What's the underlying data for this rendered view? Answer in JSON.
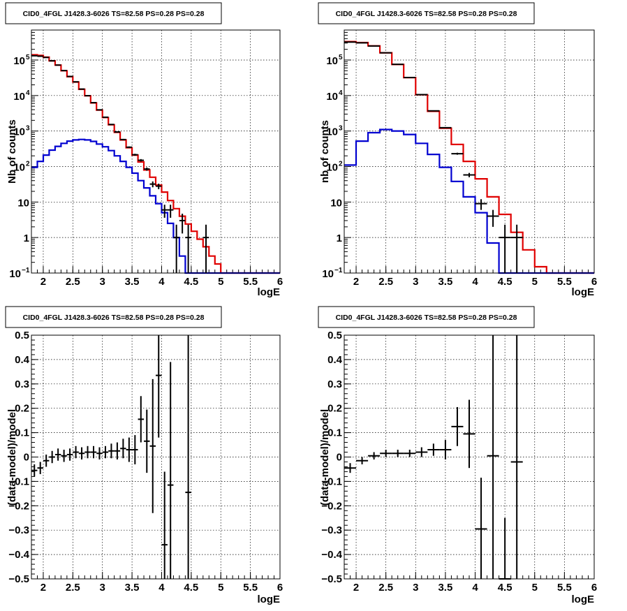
{
  "chart_data": [
    {
      "id": "top-left",
      "type": "step-histogram",
      "title": "CID0_4FGL J1428.3-6026 TS=82.58 PS=0.28 PS=0.28",
      "xlabel": "logE",
      "ylabel": "Nb of counts",
      "log_y": true,
      "xlim": [
        1.8,
        6.0
      ],
      "ylim": [
        0.1,
        700000
      ],
      "x_ticks": [
        2,
        2.5,
        3,
        3.5,
        4,
        4.5,
        5,
        5.5,
        6
      ],
      "x_tick_labels": [
        "2",
        "2.5",
        "3",
        "3.5",
        "4",
        "4.5",
        "5",
        "5.5",
        "6"
      ],
      "y_ticks": [
        0.1,
        1,
        10,
        100,
        1000,
        10000,
        100000
      ],
      "y_tick_labels": [
        {
          "base": "10",
          "exp": "−1"
        },
        {
          "base": "1",
          "exp": ""
        },
        {
          "base": "10",
          "exp": ""
        },
        {
          "base": "10",
          "exp": "2"
        },
        {
          "base": "10",
          "exp": "3"
        },
        {
          "base": "10",
          "exp": "4"
        },
        {
          "base": "10",
          "exp": "5"
        }
      ],
      "grid": true,
      "bin_edges": [
        1.8,
        1.9,
        2.0,
        2.1,
        2.2,
        2.3,
        2.4,
        2.5,
        2.6,
        2.7,
        2.8,
        2.9,
        3.0,
        3.1,
        3.2,
        3.3,
        3.4,
        3.5,
        3.6,
        3.7,
        3.8,
        3.9,
        4.0,
        4.1,
        4.2,
        4.3,
        4.4,
        4.5,
        4.6,
        4.7,
        4.8,
        4.9,
        5.0,
        5.1,
        5.2,
        5.3,
        5.4,
        5.5,
        5.6,
        5.7,
        5.8,
        5.9,
        6.0
      ],
      "series": [
        {
          "color": "#e00000",
          "values": [
            140000,
            135000,
            120000,
            95000,
            72000,
            50000,
            34000,
            24000,
            15000,
            9800,
            6200,
            3900,
            2400,
            1500,
            920,
            560,
            340,
            210,
            135,
            80,
            50,
            30,
            19,
            11,
            6.5,
            4.0,
            2.4,
            1.5,
            0.9,
            0.55,
            0.3,
            0.18,
            0.1,
            0.1,
            0.1,
            0.1,
            0.1,
            0.1,
            0.1,
            0.1,
            0.1,
            0.1
          ]
        },
        {
          "color": "#0000d0",
          "values": [
            95,
            140,
            210,
            290,
            370,
            450,
            520,
            560,
            580,
            560,
            510,
            430,
            360,
            280,
            200,
            140,
            95,
            65,
            40,
            25,
            15,
            9.0,
            5.0,
            2.5,
            1.0,
            0.3,
            0.08,
            0.05,
            0.05,
            0.05,
            0.05,
            0.05,
            0.05,
            0.05,
            0.05,
            0.05,
            0.05,
            0.05,
            0.05,
            0.05,
            0.05,
            0.05
          ]
        }
      ],
      "data_points": [
        {
          "x": 1.85,
          "y": 132000,
          "ylo": 131000,
          "yhi": 133000
        },
        {
          "x": 1.95,
          "y": 128000,
          "ylo": 127000,
          "yhi": 129000
        },
        {
          "x": 2.05,
          "y": 118000,
          "ylo": 117000,
          "yhi": 119000
        },
        {
          "x": 2.15,
          "y": 95000,
          "ylo": 94000,
          "yhi": 96000
        },
        {
          "x": 2.25,
          "y": 72000,
          "ylo": 71000,
          "yhi": 73000
        },
        {
          "x": 2.35,
          "y": 50500,
          "ylo": 50000,
          "yhi": 51000
        },
        {
          "x": 2.45,
          "y": 34500,
          "ylo": 34000,
          "yhi": 35000
        },
        {
          "x": 2.55,
          "y": 24300,
          "ylo": 24000,
          "yhi": 24600
        },
        {
          "x": 2.65,
          "y": 15200,
          "ylo": 15000,
          "yhi": 15400
        },
        {
          "x": 2.75,
          "y": 9900,
          "ylo": 9800,
          "yhi": 10000
        },
        {
          "x": 2.85,
          "y": 6300,
          "ylo": 6200,
          "yhi": 6400
        },
        {
          "x": 2.95,
          "y": 3950,
          "ylo": 3880,
          "yhi": 4020
        },
        {
          "x": 3.05,
          "y": 2450,
          "ylo": 2400,
          "yhi": 2500
        },
        {
          "x": 3.15,
          "y": 1530,
          "ylo": 1490,
          "yhi": 1570
        },
        {
          "x": 3.25,
          "y": 940,
          "ylo": 910,
          "yhi": 970
        },
        {
          "x": 3.35,
          "y": 575,
          "ylo": 550,
          "yhi": 600
        },
        {
          "x": 3.45,
          "y": 350,
          "ylo": 332,
          "yhi": 368
        },
        {
          "x": 3.55,
          "y": 215,
          "ylo": 201,
          "yhi": 229
        },
        {
          "x": 3.65,
          "y": 150,
          "ylo": 138,
          "yhi": 162
        },
        {
          "x": 3.75,
          "y": 85,
          "ylo": 76,
          "yhi": 94
        },
        {
          "x": 3.85,
          "y": 32,
          "ylo": 26,
          "yhi": 38
        },
        {
          "x": 3.95,
          "y": 28,
          "ylo": 23,
          "yhi": 33
        },
        {
          "x": 4.05,
          "y": 6,
          "ylo": 3.6,
          "yhi": 8.4
        },
        {
          "x": 4.15,
          "y": 6,
          "ylo": 3.6,
          "yhi": 8.4
        },
        {
          "x": 4.25,
          "y": 1,
          "ylo": 0.1,
          "yhi": 2.3
        },
        {
          "x": 4.35,
          "y": 3,
          "ylo": 1.3,
          "yhi": 4.7
        },
        {
          "x": 4.45,
          "y": 1,
          "ylo": 0.1,
          "yhi": 2.3
        },
        {
          "x": 4.75,
          "y": 1,
          "ylo": 0.1,
          "yhi": 2.3
        }
      ]
    },
    {
      "id": "top-right",
      "type": "step-histogram",
      "title": "CID0_4FGL J1428.3-6026 TS=82.58 PS=0.28 PS=0.28",
      "xlabel": "logE",
      "ylabel": "nb of counts",
      "log_y": true,
      "xlim": [
        1.8,
        6.0
      ],
      "ylim": [
        0.1,
        700000
      ],
      "x_ticks": [
        2,
        2.5,
        3,
        3.5,
        4,
        4.5,
        5,
        5.5,
        6
      ],
      "x_tick_labels": [
        "2",
        "2.5",
        "3",
        "3.5",
        "4",
        "4.5",
        "5",
        "5.5",
        "6"
      ],
      "y_ticks": [
        0.1,
        1,
        10,
        100,
        1000,
        10000,
        100000
      ],
      "y_tick_labels": [
        {
          "base": "10",
          "exp": "−1"
        },
        {
          "base": "1",
          "exp": ""
        },
        {
          "base": "10",
          "exp": ""
        },
        {
          "base": "10",
          "exp": "2"
        },
        {
          "base": "10",
          "exp": "3"
        },
        {
          "base": "10",
          "exp": "4"
        },
        {
          "base": "10",
          "exp": "5"
        }
      ],
      "grid": true,
      "bin_edges": [
        1.8,
        2.0,
        2.2,
        2.4,
        2.6,
        2.8,
        3.0,
        3.2,
        3.4,
        3.6,
        3.8,
        4.0,
        4.2,
        4.4,
        4.6,
        4.8,
        5.0,
        5.2,
        5.4,
        5.6,
        5.8,
        6.0
      ],
      "series": [
        {
          "color": "#e00000",
          "values": [
            330000,
            310000,
            250000,
            160000,
            75000,
            32000,
            10500,
            3600,
            1200,
            420,
            140,
            45,
            14,
            4.5,
            1.4,
            0.45,
            0.15,
            0.05,
            0.05,
            0.05,
            0.05
          ]
        },
        {
          "color": "#0000d0",
          "values": [
            110,
            520,
            900,
            1100,
            1000,
            800,
            450,
            220,
            95,
            38,
            14,
            5,
            0.7,
            0.08,
            0.08,
            0.08,
            0.08,
            0.08,
            0.08,
            0.08,
            0.08
          ]
        }
      ],
      "data_points": [
        {
          "x": 1.9,
          "y": 320000,
          "ylo": 319000,
          "yhi": 321000
        },
        {
          "x": 2.1,
          "y": 305000,
          "ylo": 304000,
          "yhi": 306000
        },
        {
          "x": 2.3,
          "y": 248000,
          "ylo": 247000,
          "yhi": 249000
        },
        {
          "x": 2.5,
          "y": 160000,
          "ylo": 159000,
          "yhi": 161000
        },
        {
          "x": 2.7,
          "y": 75500,
          "ylo": 75000,
          "yhi": 76000
        },
        {
          "x": 2.9,
          "y": 32200,
          "ylo": 32000,
          "yhi": 32400
        },
        {
          "x": 3.1,
          "y": 10600,
          "ylo": 10500,
          "yhi": 10700
        },
        {
          "x": 3.3,
          "y": 3700,
          "ylo": 3640,
          "yhi": 3760
        },
        {
          "x": 3.5,
          "y": 1240,
          "ylo": 1200,
          "yhi": 1280
        },
        {
          "x": 3.7,
          "y": 230,
          "ylo": 215,
          "yhi": 245
        },
        {
          "x": 3.9,
          "y": 58,
          "ylo": 50,
          "yhi": 66
        },
        {
          "x": 4.1,
          "y": 9,
          "ylo": 6,
          "yhi": 12
        },
        {
          "x": 4.3,
          "y": 4,
          "ylo": 2,
          "yhi": 6
        },
        {
          "x": 4.5,
          "y": 1,
          "ylo": 0.1,
          "yhi": 2.3
        },
        {
          "x": 4.7,
          "y": 1,
          "ylo": 0.1,
          "yhi": 2.3
        }
      ]
    },
    {
      "id": "bottom-left",
      "type": "scatter-errorbars",
      "title": "CID0_4FGL J1428.3-6026 TS=82.58 PS=0.28 PS=0.28",
      "xlabel": "logE",
      "ylabel": "(data-model)/model",
      "log_y": false,
      "xlim": [
        1.8,
        6.0
      ],
      "ylim": [
        -0.5,
        0.5
      ],
      "x_ticks": [
        2,
        2.5,
        3,
        3.5,
        4,
        4.5,
        5,
        5.5,
        6
      ],
      "x_tick_labels": [
        "2",
        "2.5",
        "3",
        "3.5",
        "4",
        "4.5",
        "5",
        "5.5",
        "6"
      ],
      "y_ticks": [
        -0.5,
        -0.4,
        -0.3,
        -0.2,
        -0.1,
        0,
        0.1,
        0.2,
        0.3,
        0.4,
        0.5
      ],
      "y_tick_labels": [
        "−0.5",
        "−0.4",
        "−0.3",
        "−0.2",
        "−0.1",
        "0",
        "0.1",
        "0.2",
        "0.3",
        "0.4",
        "0.5"
      ],
      "grid": true,
      "xerr": 0.05,
      "points": [
        {
          "x": 1.85,
          "y": -0.055,
          "err": 0.025
        },
        {
          "x": 1.95,
          "y": -0.045,
          "err": 0.025
        },
        {
          "x": 2.05,
          "y": -0.015,
          "err": 0.025
        },
        {
          "x": 2.15,
          "y": 0.0,
          "err": 0.025
        },
        {
          "x": 2.25,
          "y": 0.01,
          "err": 0.025
        },
        {
          "x": 2.35,
          "y": 0.005,
          "err": 0.025
        },
        {
          "x": 2.45,
          "y": 0.01,
          "err": 0.025
        },
        {
          "x": 2.55,
          "y": 0.02,
          "err": 0.025
        },
        {
          "x": 2.65,
          "y": 0.015,
          "err": 0.025
        },
        {
          "x": 2.75,
          "y": 0.02,
          "err": 0.025
        },
        {
          "x": 2.85,
          "y": 0.02,
          "err": 0.025
        },
        {
          "x": 2.95,
          "y": 0.015,
          "err": 0.025
        },
        {
          "x": 3.05,
          "y": 0.02,
          "err": 0.025
        },
        {
          "x": 3.15,
          "y": 0.025,
          "err": 0.03
        },
        {
          "x": 3.25,
          "y": 0.025,
          "err": 0.035
        },
        {
          "x": 3.35,
          "y": 0.035,
          "err": 0.04
        },
        {
          "x": 3.45,
          "y": 0.03,
          "err": 0.05
        },
        {
          "x": 3.55,
          "y": 0.03,
          "err": 0.06
        },
        {
          "x": 3.65,
          "y": 0.155,
          "err": 0.095
        },
        {
          "x": 3.75,
          "y": 0.065,
          "err": 0.13
        },
        {
          "x": 3.85,
          "y": 0.045,
          "err": 0.275
        },
        {
          "x": 3.95,
          "y": 0.335,
          "err": 0.255
        },
        {
          "x": 4.05,
          "y": -0.36,
          "err": 0.3
        },
        {
          "x": 4.15,
          "y": -0.115,
          "err": 0.505
        },
        {
          "x": 4.45,
          "y": -0.145,
          "err": 0.7
        }
      ]
    },
    {
      "id": "bottom-right",
      "type": "scatter-errorbars",
      "title": "CID0_4FGL J1428.3-6026 TS=82.58 PS=0.28 PS=0.28",
      "xlabel": "logE",
      "ylabel": "(data-model)/model",
      "log_y": false,
      "xlim": [
        1.8,
        6.0
      ],
      "ylim": [
        -0.5,
        0.5
      ],
      "x_ticks": [
        2,
        2.5,
        3,
        3.5,
        4,
        4.5,
        5,
        5.5,
        6
      ],
      "x_tick_labels": [
        "2",
        "2.5",
        "3",
        "3.5",
        "4",
        "4.5",
        "5",
        "5.5",
        "6"
      ],
      "y_ticks": [
        -0.5,
        -0.4,
        -0.3,
        -0.2,
        -0.1,
        0,
        0.1,
        0.2,
        0.3,
        0.4,
        0.5
      ],
      "y_tick_labels": [
        "−0.5",
        "−0.4",
        "−0.3",
        "−0.2",
        "−0.1",
        "0",
        "0.1",
        "0.2",
        "0.3",
        "0.4",
        "0.5"
      ],
      "grid": true,
      "xerr": 0.1,
      "points": [
        {
          "x": 1.9,
          "y": -0.045,
          "err": 0.02
        },
        {
          "x": 2.1,
          "y": -0.015,
          "err": 0.015
        },
        {
          "x": 2.3,
          "y": 0.005,
          "err": 0.015
        },
        {
          "x": 2.5,
          "y": 0.015,
          "err": 0.015
        },
        {
          "x": 2.7,
          "y": 0.015,
          "err": 0.015
        },
        {
          "x": 2.9,
          "y": 0.015,
          "err": 0.015
        },
        {
          "x": 3.1,
          "y": 0.02,
          "err": 0.02
        },
        {
          "x": 3.3,
          "y": 0.03,
          "err": 0.025
        },
        {
          "x": 3.5,
          "y": 0.03,
          "err": 0.04
        },
        {
          "x": 3.7,
          "y": 0.125,
          "err": 0.08
        },
        {
          "x": 3.9,
          "y": 0.095,
          "err": 0.14
        },
        {
          "x": 4.1,
          "y": -0.295,
          "err": 0.21
        },
        {
          "x": 4.3,
          "y": 0.005,
          "err": 0.55
        },
        {
          "x": 4.5,
          "y": -0.5,
          "err": 0.25
        },
        {
          "x": 4.7,
          "y": -0.02,
          "err": 0.55
        }
      ]
    }
  ]
}
